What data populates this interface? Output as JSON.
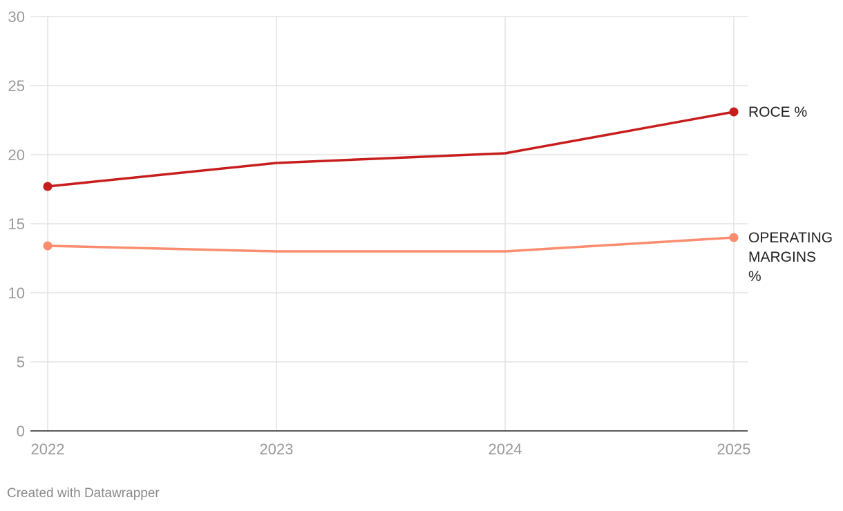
{
  "chart_data": {
    "type": "line",
    "x": [
      "2022",
      "2023",
      "2024",
      "2025"
    ],
    "ylim": [
      0,
      30
    ],
    "yticks": [
      0,
      5,
      10,
      15,
      20,
      25,
      30
    ],
    "grid": true,
    "legend": "labels at line ends (right)",
    "series": [
      {
        "name": "ROCE %",
        "values": [
          17.7,
          19.4,
          20.1,
          23.1
        ],
        "color": "#c71e1d"
      },
      {
        "name": "OPERATING MARGINS %",
        "values": [
          13.4,
          13.0,
          13.0,
          14.0
        ],
        "color": "#fa8c6f"
      }
    ]
  },
  "footer": {
    "credit": "Created with Datawrapper"
  }
}
